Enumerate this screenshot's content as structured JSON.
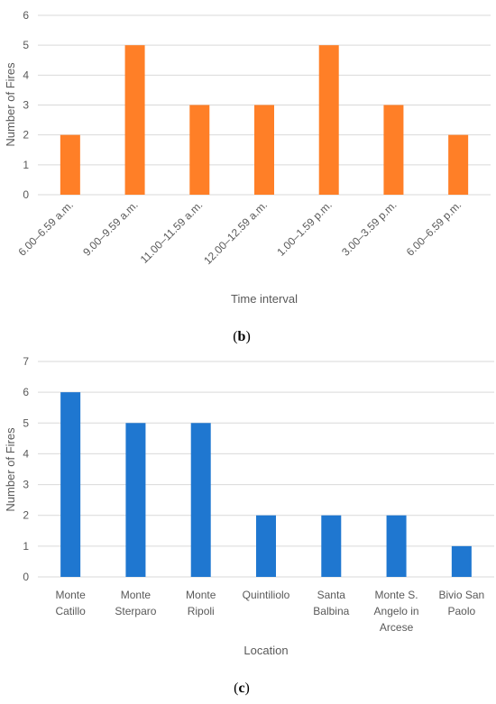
{
  "chart_data": [
    {
      "type": "bar",
      "title": "",
      "xlabel": "Time interval",
      "ylabel": "Number of Fires",
      "ylim": [
        0,
        6
      ],
      "yticks": [
        0,
        1,
        2,
        3,
        4,
        5,
        6
      ],
      "grid": true,
      "color": "#ff7f27",
      "categories": [
        "6.00–6.59 a.m.",
        "9.00–9.59 a.m.",
        "11.00–11.59 a.m.",
        "12.00–12.59 a.m.",
        "1.00–1.59 p.m.",
        "3.00–3.59 p.m.",
        "6.00–6.59 p.m."
      ],
      "values": [
        2,
        5,
        3,
        3,
        5,
        3,
        2
      ],
      "caption_pre": "(",
      "caption_bold": "b",
      "caption_post": ")"
    },
    {
      "type": "bar",
      "title": "",
      "xlabel": "Location",
      "ylabel": "Number of Fires",
      "ylim": [
        0,
        7
      ],
      "yticks": [
        0,
        1,
        2,
        3,
        4,
        5,
        6,
        7
      ],
      "grid": true,
      "color": "#1f77d0",
      "categories": [
        [
          "Monte",
          "Catillo"
        ],
        [
          "Monte",
          "Sterparo"
        ],
        [
          "Monte",
          "Ripoli"
        ],
        [
          "Quintiliolo"
        ],
        [
          "Santa",
          "Balbina"
        ],
        [
          "Monte S.",
          "Angelo in",
          "Arcese"
        ],
        [
          "Bivio San",
          "Paolo"
        ]
      ],
      "values": [
        6,
        5,
        5,
        2,
        2,
        2,
        1
      ],
      "caption_pre": "(",
      "caption_bold": "c",
      "caption_post": ")"
    }
  ]
}
